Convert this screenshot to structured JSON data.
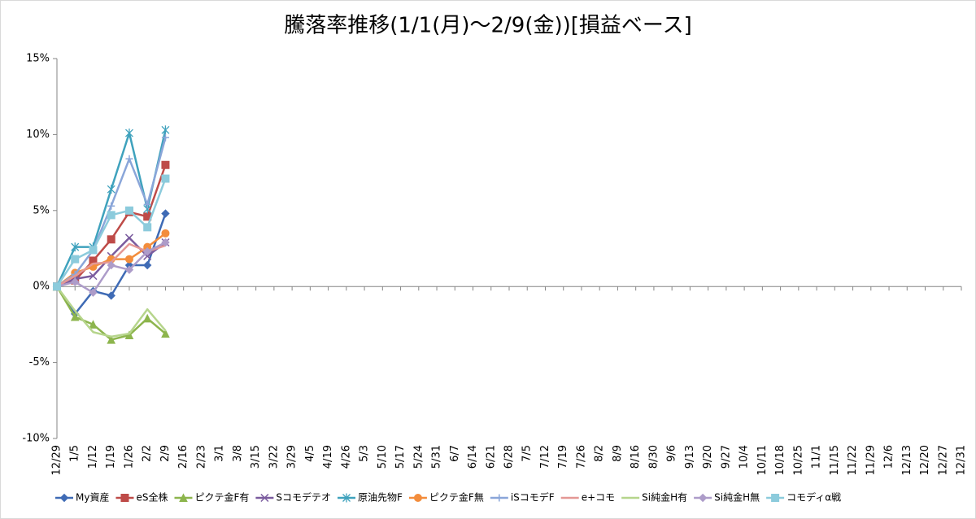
{
  "chart_data": {
    "type": "line",
    "title": "騰落率推移(1/1(月)〜2/9(金))[損益ベース]",
    "categories": [
      "12/29",
      "1/5",
      "1/12",
      "1/19",
      "1/26",
      "2/2",
      "2/9",
      "2/16",
      "2/23",
      "3/1",
      "3/8",
      "3/15",
      "3/22",
      "3/29",
      "4/5",
      "4/19",
      "4/26",
      "5/3",
      "5/10",
      "5/17",
      "5/24",
      "5/31",
      "6/7",
      "6/14",
      "6/21",
      "6/28",
      "7/5",
      "7/12",
      "7/19",
      "7/26",
      "8/2",
      "8/9",
      "8/16",
      "8/30",
      "9/6",
      "9/13",
      "9/20",
      "9/27",
      "10/4",
      "10/11",
      "10/18",
      "10/25",
      "11/1",
      "11/15",
      "11/22",
      "11/29",
      "12/6",
      "12/13",
      "12/20",
      "12/27",
      "12/31"
    ],
    "ylim": [
      -10,
      15
    ],
    "yticks": [
      {
        "value": -10,
        "label": "-10%"
      },
      {
        "value": -5,
        "label": "-5%"
      },
      {
        "value": 0,
        "label": "0%"
      },
      {
        "value": 5,
        "label": "5%"
      },
      {
        "value": 10,
        "label": "10%"
      },
      {
        "value": 15,
        "label": "15%"
      }
    ],
    "grid": false,
    "legend": "bottom",
    "series": [
      {
        "name": "My資産",
        "color": "#3f6bb5",
        "marker": "diamond",
        "values": [
          0,
          -1.8,
          -0.3,
          -0.6,
          1.4,
          1.4,
          4.8,
          null,
          null,
          null,
          null,
          null,
          null,
          null,
          null,
          null,
          null,
          null,
          null,
          null,
          null,
          null,
          null,
          null,
          null,
          null,
          null,
          null,
          null,
          null,
          null,
          null,
          null,
          null,
          null,
          null,
          null,
          null,
          null,
          null,
          null,
          null,
          null,
          null,
          null,
          null,
          null,
          null,
          null,
          null,
          null
        ]
      },
      {
        "name": "eS全株",
        "color": "#be4b48",
        "marker": "square",
        "values": [
          0,
          0.4,
          1.7,
          3.1,
          4.9,
          4.6,
          8.0,
          null,
          null,
          null,
          null,
          null,
          null,
          null,
          null,
          null,
          null,
          null,
          null,
          null,
          null,
          null,
          null,
          null,
          null,
          null,
          null,
          null,
          null,
          null,
          null,
          null,
          null,
          null,
          null,
          null,
          null,
          null,
          null,
          null,
          null,
          null,
          null,
          null,
          null,
          null,
          null,
          null,
          null,
          null,
          null
        ]
      },
      {
        "name": "ピクテ金F有",
        "color": "#8db54d",
        "marker": "triangle",
        "values": [
          0,
          -2.0,
          -2.5,
          -3.5,
          -3.2,
          -2.1,
          -3.1,
          null,
          null,
          null,
          null,
          null,
          null,
          null,
          null,
          null,
          null,
          null,
          null,
          null,
          null,
          null,
          null,
          null,
          null,
          null,
          null,
          null,
          null,
          null,
          null,
          null,
          null,
          null,
          null,
          null,
          null,
          null,
          null,
          null,
          null,
          null,
          null,
          null,
          null,
          null,
          null,
          null,
          null,
          null,
          null
        ]
      },
      {
        "name": "Sコモデテオ",
        "color": "#7a5b9e",
        "marker": "x",
        "values": [
          0,
          0.5,
          0.7,
          2.0,
          3.2,
          2.0,
          2.9,
          null,
          null,
          null,
          null,
          null,
          null,
          null,
          null,
          null,
          null,
          null,
          null,
          null,
          null,
          null,
          null,
          null,
          null,
          null,
          null,
          null,
          null,
          null,
          null,
          null,
          null,
          null,
          null,
          null,
          null,
          null,
          null,
          null,
          null,
          null,
          null,
          null,
          null,
          null,
          null,
          null,
          null,
          null,
          null
        ]
      },
      {
        "name": "原油先物F",
        "color": "#3fa2bd",
        "marker": "star",
        "values": [
          0,
          2.6,
          2.6,
          6.4,
          10.1,
          5.1,
          10.3,
          null,
          null,
          null,
          null,
          null,
          null,
          null,
          null,
          null,
          null,
          null,
          null,
          null,
          null,
          null,
          null,
          null,
          null,
          null,
          null,
          null,
          null,
          null,
          null,
          null,
          null,
          null,
          null,
          null,
          null,
          null,
          null,
          null,
          null,
          null,
          null,
          null,
          null,
          null,
          null,
          null,
          null,
          null,
          null
        ]
      },
      {
        "name": "ピクテ金F無",
        "color": "#f38d3c",
        "marker": "circle",
        "values": [
          0,
          0.9,
          1.3,
          1.8,
          1.8,
          2.6,
          3.5,
          null,
          null,
          null,
          null,
          null,
          null,
          null,
          null,
          null,
          null,
          null,
          null,
          null,
          null,
          null,
          null,
          null,
          null,
          null,
          null,
          null,
          null,
          null,
          null,
          null,
          null,
          null,
          null,
          null,
          null,
          null,
          null,
          null,
          null,
          null,
          null,
          null,
          null,
          null,
          null,
          null,
          null,
          null,
          null
        ]
      },
      {
        "name": "iSコモデF",
        "color": "#8aa6d9",
        "marker": "plus",
        "values": [
          0,
          0.8,
          2.4,
          5.3,
          8.4,
          5.4,
          9.8,
          null,
          null,
          null,
          null,
          null,
          null,
          null,
          null,
          null,
          null,
          null,
          null,
          null,
          null,
          null,
          null,
          null,
          null,
          null,
          null,
          null,
          null,
          null,
          null,
          null,
          null,
          null,
          null,
          null,
          null,
          null,
          null,
          null,
          null,
          null,
          null,
          null,
          null,
          null,
          null,
          null,
          null,
          null,
          null
        ]
      },
      {
        "name": "e+コモ",
        "color": "#e49895",
        "marker": "none",
        "values": [
          0,
          0.7,
          1.5,
          1.6,
          2.8,
          2.3,
          2.7,
          null,
          null,
          null,
          null,
          null,
          null,
          null,
          null,
          null,
          null,
          null,
          null,
          null,
          null,
          null,
          null,
          null,
          null,
          null,
          null,
          null,
          null,
          null,
          null,
          null,
          null,
          null,
          null,
          null,
          null,
          null,
          null,
          null,
          null,
          null,
          null,
          null,
          null,
          null,
          null,
          null,
          null,
          null,
          null
        ]
      },
      {
        "name": "Si純金H有",
        "color": "#b6d58c",
        "marker": "none",
        "values": [
          0,
          -1.6,
          -3.0,
          -3.3,
          -3.1,
          -1.5,
          -2.9,
          null,
          null,
          null,
          null,
          null,
          null,
          null,
          null,
          null,
          null,
          null,
          null,
          null,
          null,
          null,
          null,
          null,
          null,
          null,
          null,
          null,
          null,
          null,
          null,
          null,
          null,
          null,
          null,
          null,
          null,
          null,
          null,
          null,
          null,
          null,
          null,
          null,
          null,
          null,
          null,
          null,
          null,
          null,
          null
        ]
      },
      {
        "name": "Si純金H無",
        "color": "#ad9cc9",
        "marker": "diamond",
        "values": [
          0,
          0.3,
          -0.4,
          1.4,
          1.1,
          2.3,
          2.9,
          null,
          null,
          null,
          null,
          null,
          null,
          null,
          null,
          null,
          null,
          null,
          null,
          null,
          null,
          null,
          null,
          null,
          null,
          null,
          null,
          null,
          null,
          null,
          null,
          null,
          null,
          null,
          null,
          null,
          null,
          null,
          null,
          null,
          null,
          null,
          null,
          null,
          null,
          null,
          null,
          null,
          null,
          null,
          null
        ]
      },
      {
        "name": "コモディα戦",
        "color": "#8ccbdc",
        "marker": "square",
        "values": [
          0,
          1.8,
          2.4,
          4.7,
          5.0,
          3.9,
          7.1,
          null,
          null,
          null,
          null,
          null,
          null,
          null,
          null,
          null,
          null,
          null,
          null,
          null,
          null,
          null,
          null,
          null,
          null,
          null,
          null,
          null,
          null,
          null,
          null,
          null,
          null,
          null,
          null,
          null,
          null,
          null,
          null,
          null,
          null,
          null,
          null,
          null,
          null,
          null,
          null,
          null,
          null,
          null,
          null
        ]
      }
    ]
  }
}
